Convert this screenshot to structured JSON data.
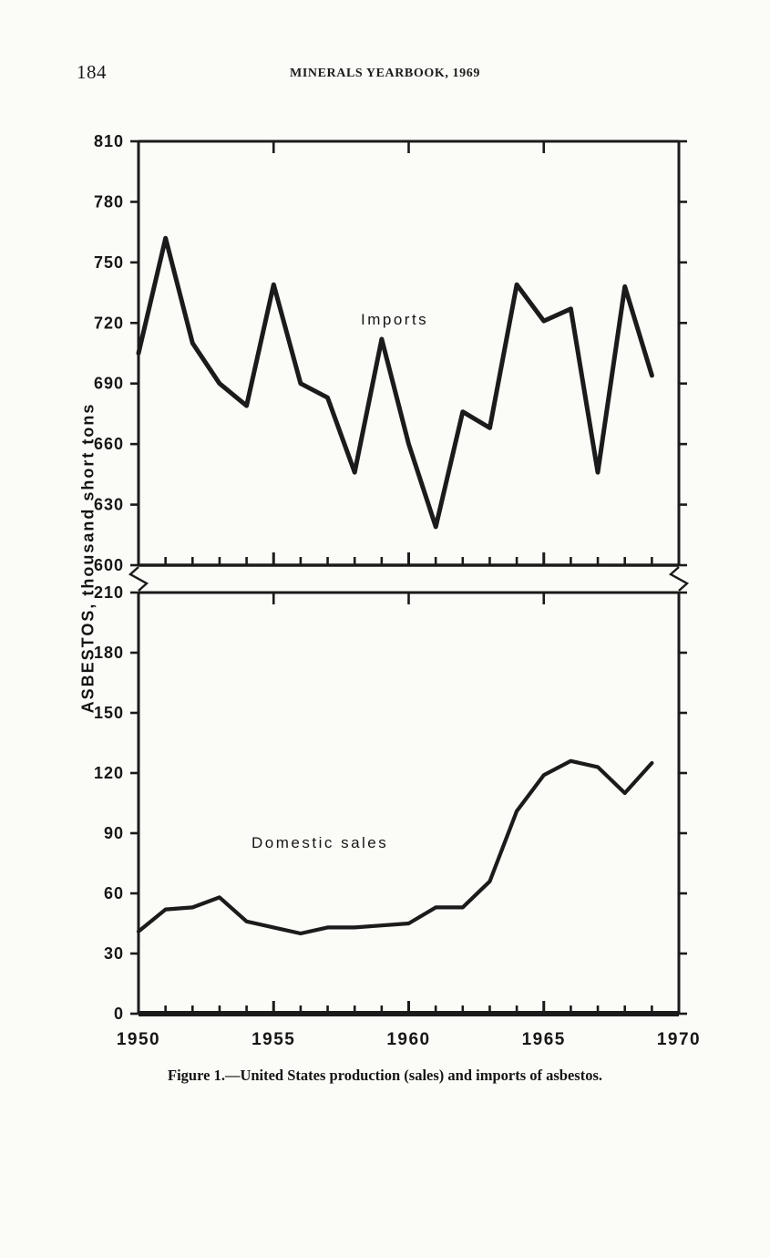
{
  "page": {
    "page_number": "184",
    "running_header": "MINERALS YEARBOOK, 1969",
    "caption": "Figure 1.—United States production (sales) and imports of asbestos."
  },
  "ink_color": "#1b1b1b",
  "paper_color": "#fbfbf8",
  "chart_data": [
    {
      "type": "line",
      "name": "Imports",
      "series_label": "Imports",
      "x": [
        1950,
        1951,
        1952,
        1953,
        1954,
        1955,
        1956,
        1957,
        1958,
        1959,
        1960,
        1961,
        1962,
        1963,
        1964,
        1965,
        1966,
        1967,
        1968,
        1969
      ],
      "values": [
        705,
        762,
        710,
        690,
        679,
        739,
        690,
        683,
        646,
        712,
        660,
        619,
        676,
        668,
        739,
        721,
        727,
        646,
        738,
        694
      ],
      "ylabel": "ASBESTOS, thousand short tons",
      "xlabel": "",
      "ylim": [
        600,
        810
      ],
      "yticks": [
        600,
        630,
        660,
        690,
        720,
        750,
        780,
        810
      ],
      "xlim": [
        1950,
        1970
      ],
      "xticks": [
        1950,
        1955,
        1960,
        1965,
        1970
      ],
      "grid": false,
      "legend": "inline-label",
      "axis_break_below": true
    },
    {
      "type": "line",
      "name": "Domestic sales",
      "series_label": "Domestic sales",
      "x": [
        1950,
        1951,
        1952,
        1953,
        1954,
        1955,
        1956,
        1957,
        1958,
        1959,
        1960,
        1961,
        1962,
        1963,
        1964,
        1965,
        1966,
        1967,
        1968,
        1969
      ],
      "values": [
        41,
        52,
        53,
        58,
        46,
        43,
        40,
        43,
        43,
        44,
        45,
        53,
        53,
        66,
        101,
        119,
        126,
        123,
        110,
        125
      ],
      "ylabel": "ASBESTOS, thousand short tons",
      "xlabel": "",
      "ylim": [
        0,
        210
      ],
      "yticks": [
        0,
        30,
        60,
        90,
        120,
        150,
        180,
        210
      ],
      "xlim": [
        1950,
        1970
      ],
      "xticks": [
        1950,
        1955,
        1960,
        1965,
        1970
      ],
      "grid": false,
      "legend": "inline-label"
    }
  ]
}
